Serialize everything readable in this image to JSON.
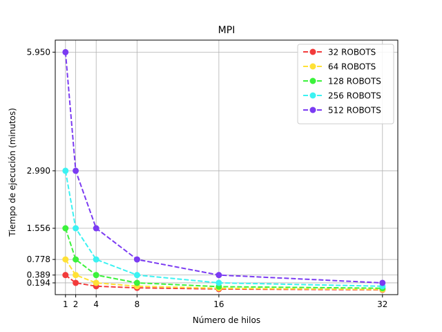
{
  "chart_data": {
    "type": "line",
    "title": "MPI",
    "xlabel": "Número de hilos",
    "ylabel": "Tiempo de ejecución (minutos)",
    "x": [
      1,
      2,
      4,
      8,
      16,
      32
    ],
    "xticks": [
      1,
      2,
      4,
      8,
      16,
      32
    ],
    "xtick_labels": [
      "1",
      "2",
      "4",
      "8",
      "16",
      "32"
    ],
    "yticks": [
      0.194,
      0.389,
      0.778,
      1.556,
      2.99,
      5.95
    ],
    "ytick_labels": [
      "0.194",
      "0.389",
      "0.778",
      "1.556",
      "2.990",
      "5.950"
    ],
    "xlim": [
      0,
      33.5
    ],
    "ylim": [
      -0.1,
      6.25
    ],
    "grid": true,
    "legend_position": "top-right",
    "series": [
      {
        "name": "32 ROBOTS",
        "color": "#f23b3b",
        "values": [
          0.389,
          0.194,
          0.11,
          0.07,
          0.04,
          0.02
        ]
      },
      {
        "name": "64 ROBOTS",
        "color": "#ffe135",
        "values": [
          0.778,
          0.389,
          0.194,
          0.11,
          0.06,
          0.03
        ]
      },
      {
        "name": "128 ROBOTS",
        "color": "#3bf23b",
        "values": [
          1.556,
          0.778,
          0.389,
          0.194,
          0.1,
          0.06
        ]
      },
      {
        "name": "256 ROBOTS",
        "color": "#3bf2f2",
        "values": [
          2.99,
          1.556,
          0.778,
          0.389,
          0.194,
          0.11
        ]
      },
      {
        "name": "512 ROBOTS",
        "color": "#7b3bf2",
        "values": [
          5.95,
          2.99,
          1.556,
          0.778,
          0.389,
          0.194
        ]
      }
    ]
  }
}
